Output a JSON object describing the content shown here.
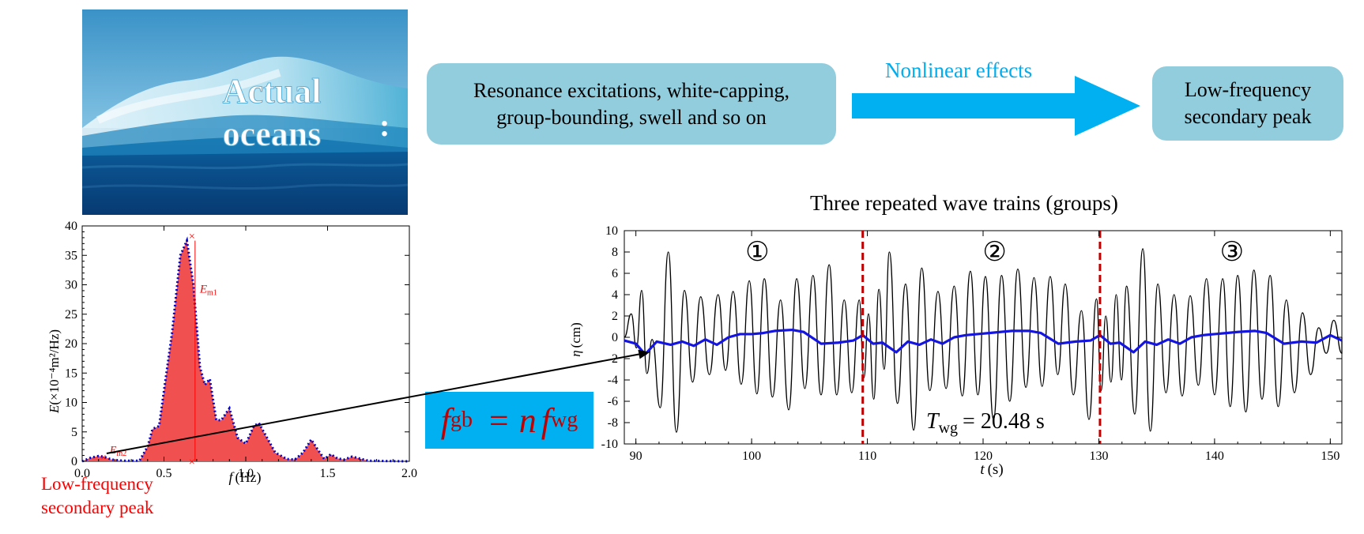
{
  "photo": {
    "line1": "Actual",
    "line2": "oceans",
    "colon": ":"
  },
  "flow": {
    "causes_line1": "Resonance excitations, white-capping,",
    "causes_line2": "group-bounding, swell and so on",
    "arrow_label": "Nonlinear effects",
    "result_line1": "Low-frequency",
    "result_line2": "secondary peak"
  },
  "spectrum_label": {
    "line1": "Low-frequency",
    "line2": "secondary peak"
  },
  "formula": {
    "f1": "f",
    "sub1": "gb",
    "eq": "= n",
    "f2": "f",
    "sub2": "wg"
  },
  "colors": {
    "accent_box": "#92cddd",
    "arrow": "#00b0f0",
    "spectrum_fill": "#f05050",
    "spectrum_dots": "#0000cc",
    "red_text": "#ff0000",
    "low_freq_line": "#1515e0",
    "separator": "#c00000"
  },
  "chart_data": [
    {
      "type": "area",
      "xlabel_italic": "f",
      "xlabel_unit": "(Hz)",
      "ylabel_italic": "E",
      "ylabel_unit": "(×10⁻⁴m²/Hz)",
      "xlim": [
        0.0,
        2.0
      ],
      "ylim": [
        0,
        40
      ],
      "x_ticks": [
        "0.0",
        "0.5",
        "1.0",
        "1.5",
        "2.0"
      ],
      "y_ticks": [
        "0",
        "5",
        "10",
        "15",
        "20",
        "25",
        "30",
        "35",
        "40"
      ],
      "annotations": {
        "em1": "E",
        "em1_sub": "m1",
        "em1_x": 0.69,
        "em1_y": 37.5,
        "em2": "E",
        "em2_sub": "m2",
        "em2_x": 0.13,
        "em2_y": 0.8
      },
      "x": [
        0.0,
        0.05,
        0.1,
        0.13,
        0.18,
        0.25,
        0.35,
        0.4,
        0.43,
        0.47,
        0.5,
        0.55,
        0.6,
        0.64,
        0.68,
        0.72,
        0.75,
        0.78,
        0.82,
        0.85,
        0.9,
        0.95,
        1.0,
        1.05,
        1.08,
        1.12,
        1.18,
        1.25,
        1.3,
        1.35,
        1.4,
        1.44,
        1.48,
        1.52,
        1.56,
        1.6,
        1.65,
        1.75,
        2.0
      ],
      "values": [
        0.0,
        0.6,
        0.9,
        0.8,
        0.3,
        0.1,
        0.1,
        2.5,
        5.5,
        6.0,
        12.0,
        22.0,
        35.0,
        37.5,
        30.0,
        16.0,
        13.0,
        14.0,
        7.0,
        7.0,
        9.0,
        4.0,
        3.0,
        6.0,
        6.5,
        4.5,
        1.5,
        0.4,
        0.3,
        1.5,
        3.7,
        2.0,
        0.4,
        1.2,
        0.5,
        0.3,
        0.8,
        0.1,
        0.0
      ]
    },
    {
      "type": "line",
      "title": "Three repeated wave trains (groups)",
      "xlabel_italic": "t",
      "xlabel_unit": "(s)",
      "ylabel_italic": "η",
      "ylabel_unit": "(cm)",
      "xlim": [
        89,
        151
      ],
      "ylim": [
        -10,
        10
      ],
      "x_ticks": [
        "90",
        "100",
        "110",
        "120",
        "130",
        "140",
        "150"
      ],
      "y_ticks": [
        "-10",
        "-8",
        "-6",
        "-4",
        "-2",
        "0",
        "2",
        "4",
        "6",
        "8",
        "10"
      ],
      "group_markers": [
        "①",
        "②",
        "③"
      ],
      "group_period_label": "T",
      "group_period_sub": "wg",
      "group_period_value": "= 20.48 s",
      "group_period": 20.48,
      "separators": [
        109.6,
        130.1
      ],
      "series": [
        {
          "role": "surface elevation (black)",
          "peak_times": [
            89.6,
            90.5,
            91.4,
            92.8,
            94.2,
            95.6,
            97.1,
            98.4,
            99.8,
            101.1,
            102.5,
            103.9,
            105.3,
            106.7,
            108.0,
            109.3,
            110.1,
            111.0,
            111.9,
            113.3,
            114.7,
            116.1,
            117.5,
            118.9,
            120.2,
            121.6,
            123.0,
            124.4,
            125.8,
            127.1,
            128.5,
            129.8,
            130.6,
            131.5,
            132.4,
            133.8,
            135.1,
            136.5,
            137.9,
            139.3,
            140.7,
            142.0,
            143.4,
            144.8,
            146.2,
            147.6,
            149.0,
            150.3
          ],
          "peak_heights": [
            2.2,
            4.4,
            -0.2,
            8.0,
            4.4,
            3.8,
            4.0,
            4.3,
            5.3,
            5.5,
            3.5,
            5.5,
            5.8,
            6.8,
            3.5,
            3.5,
            2.2,
            4.5,
            8.0,
            5.0,
            6.5,
            4.3,
            4.8,
            6.2,
            5.7,
            5.8,
            6.4,
            5.6,
            5.7,
            5.0,
            2.5,
            3.6,
            2.0,
            4.0,
            4.8,
            8.3,
            5.0,
            4.0,
            3.9,
            5.5,
            5.5,
            5.8,
            6.3,
            5.8,
            3.5,
            2.3,
            0.9,
            1.6
          ],
          "trough_heights": [
            -1.0,
            -3.4,
            -6.6,
            -8.9,
            -4.2,
            -3.5,
            -3.1,
            -4.4,
            -5.3,
            -5.6,
            -6.8,
            -4.8,
            -5.4,
            -5.4,
            -5.2,
            -3.8,
            -5.8,
            -3.0,
            -6.2,
            -8.7,
            -5.0,
            -4.8,
            -5.5,
            -5.4,
            -7.7,
            -6.0,
            -4.7,
            -4.6,
            -3.5,
            -5.4,
            -7.7,
            -5.0,
            -4.2,
            -4.0,
            -7.2,
            -8.8,
            -5.2,
            -5.5,
            -4.5,
            -5.4,
            -6.5,
            -7.0,
            -5.8,
            -6.5,
            -5.2,
            -3.5,
            -1.5,
            -1.5
          ]
        },
        {
          "role": "low-frequency component (blue)",
          "x": [
            89.0,
            90.0,
            90.8,
            91.8,
            93.0,
            94.0,
            95.0,
            96.0,
            97.0,
            98.0,
            99.0,
            100.0,
            101.0,
            102.0,
            103.5,
            104.5,
            106.0,
            107.5,
            108.8,
            109.6,
            110.5,
            111.3,
            112.5,
            113.5,
            114.5,
            115.5,
            116.5,
            117.5,
            118.5,
            119.5,
            120.5,
            121.5,
            122.5,
            124.0,
            125.0,
            126.5,
            128.0,
            129.3,
            130.1,
            131.0,
            131.8,
            133.0,
            134.0,
            135.0,
            136.0,
            137.0,
            138.0,
            139.0,
            140.0,
            141.0,
            142.0,
            143.5,
            144.5,
            146.0,
            147.5,
            148.8,
            150.0,
            151.0
          ],
          "values": [
            -0.3,
            -0.6,
            -1.6,
            -0.4,
            -0.7,
            -0.4,
            -0.8,
            -0.2,
            -0.7,
            0.0,
            0.3,
            0.3,
            0.4,
            0.6,
            0.7,
            0.5,
            -0.6,
            -0.5,
            -0.3,
            0.2,
            -0.6,
            -0.5,
            -1.4,
            -0.4,
            -0.7,
            -0.2,
            -0.6,
            0.0,
            0.2,
            0.3,
            0.4,
            0.5,
            0.6,
            0.6,
            0.4,
            -0.6,
            -0.4,
            -0.3,
            0.2,
            -0.6,
            -0.5,
            -1.4,
            -0.4,
            -0.7,
            -0.2,
            -0.6,
            0.0,
            0.2,
            0.3,
            0.4,
            0.5,
            0.6,
            0.4,
            -0.6,
            -0.4,
            -0.5,
            0.2,
            -0.3
          ]
        }
      ]
    }
  ]
}
